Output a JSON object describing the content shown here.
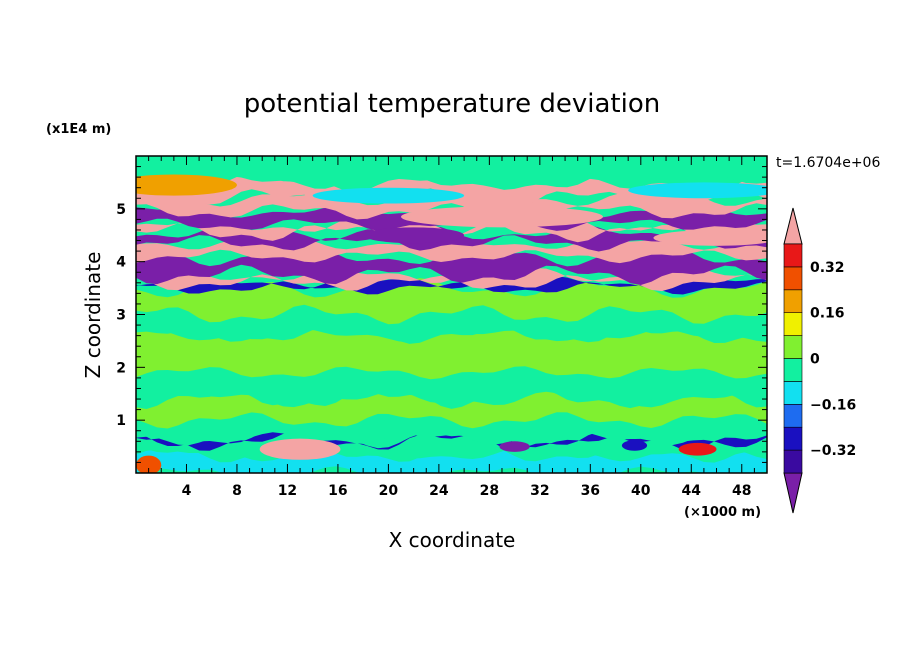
{
  "chart_data": {
    "type": "heatmap",
    "title": "potential temperature deviation",
    "xlabel": "X coordinate",
    "ylabel": "Z coordinate",
    "x_unit": "(×1000 m)",
    "y_unit": "(x1E4 m)",
    "time_label": "t=1.6704e+06",
    "xlim": [
      0,
      50
    ],
    "ylim": [
      0,
      6
    ],
    "x_ticks": [
      4,
      8,
      12,
      16,
      20,
      24,
      28,
      32,
      36,
      40,
      44,
      48
    ],
    "y_ticks": [
      1,
      2,
      3,
      4,
      5
    ],
    "colorbar": {
      "levels": [
        -0.48,
        -0.4,
        -0.32,
        -0.24,
        -0.16,
        -0.08,
        0,
        0.08,
        0.16,
        0.24,
        0.32,
        0.4
      ],
      "tick_values": [
        -0.32,
        -0.16,
        0,
        0.16,
        0.32
      ],
      "tick_labels": [
        "−0.32",
        "−0.16",
        "0",
        "0.16",
        "0.32"
      ],
      "colors": [
        "#7a1fa8",
        "#3a0aa0",
        "#1a10c0",
        "#1e6cf0",
        "#12e0f0",
        "#12f0a0",
        "#80f030",
        "#f0f000",
        "#f0a000",
        "#f05000",
        "#e81818",
        "#f4a4a4"
      ],
      "extend": "both"
    },
    "bands": [
      {
        "y": [
          0.0,
          0.35
        ],
        "color": "#12e0f0"
      },
      {
        "y": [
          0.35,
          0.6
        ],
        "color": "#12f0a0"
      },
      {
        "y": [
          0.6,
          0.65
        ],
        "color": "#1a10c0"
      },
      {
        "y": [
          0.65,
          1.0
        ],
        "color": "#12f0a0"
      },
      {
        "y": [
          1.0,
          1.4
        ],
        "color": "#80f030"
      },
      {
        "y": [
          1.4,
          1.9
        ],
        "color": "#12f0a0"
      },
      {
        "y": [
          1.9,
          2.6
        ],
        "color": "#80f030"
      },
      {
        "y": [
          2.6,
          3.0
        ],
        "color": "#12f0a0"
      },
      {
        "y": [
          3.0,
          3.5
        ],
        "color": "#80f030"
      },
      {
        "y": [
          3.5,
          3.6
        ],
        "color": "#1a10c0"
      },
      {
        "y": [
          3.6,
          3.75
        ],
        "color": "#f4a4a4"
      },
      {
        "y": [
          3.75,
          4.1
        ],
        "color": "#7a1fa8"
      },
      {
        "y": [
          4.1,
          4.35
        ],
        "color": "#f4a4a4"
      },
      {
        "y": [
          4.35,
          4.55
        ],
        "color": "#7a1fa8"
      },
      {
        "y": [
          4.55,
          4.7
        ],
        "color": "#f4a4a4"
      },
      {
        "y": [
          4.7,
          4.95
        ],
        "color": "#7a1fa8"
      },
      {
        "y": [
          4.95,
          5.2
        ],
        "color": "#f4a4a4"
      },
      {
        "y": [
          5.2,
          5.5
        ],
        "color": "#f4a4a4"
      },
      {
        "y": [
          5.5,
          6.0
        ],
        "color": "#12f0a0"
      }
    ],
    "blobs": [
      {
        "cx": 13,
        "cy": 0.45,
        "rx": 3.2,
        "ry": 0.2,
        "color": "#f4a4a4"
      },
      {
        "cx": 1,
        "cy": 0.15,
        "rx": 1.0,
        "ry": 0.18,
        "color": "#f05000"
      },
      {
        "cx": 30,
        "cy": 0.5,
        "rx": 1.2,
        "ry": 0.1,
        "color": "#7a1fa8"
      },
      {
        "cx": 39.5,
        "cy": 0.52,
        "rx": 1.0,
        "ry": 0.1,
        "color": "#1a10c0"
      },
      {
        "cx": 44.5,
        "cy": 0.45,
        "rx": 1.5,
        "ry": 0.12,
        "color": "#e81818"
      },
      {
        "cx": 29,
        "cy": 4.85,
        "rx": 8,
        "ry": 0.2,
        "color": "#f4a4a4"
      },
      {
        "cx": 22,
        "cy": 4.5,
        "rx": 4,
        "ry": 0.15,
        "color": "#7a1fa8"
      },
      {
        "cx": 3,
        "cy": 5.45,
        "rx": 5,
        "ry": 0.2,
        "color": "#f0a000"
      },
      {
        "cx": 20,
        "cy": 5.25,
        "rx": 6,
        "ry": 0.15,
        "color": "#12e0f0"
      },
      {
        "cx": 45,
        "cy": 5.35,
        "rx": 6,
        "ry": 0.15,
        "color": "#12e0f0"
      },
      {
        "cx": 46,
        "cy": 4.45,
        "rx": 5,
        "ry": 0.15,
        "color": "#f4a4a4"
      }
    ]
  }
}
